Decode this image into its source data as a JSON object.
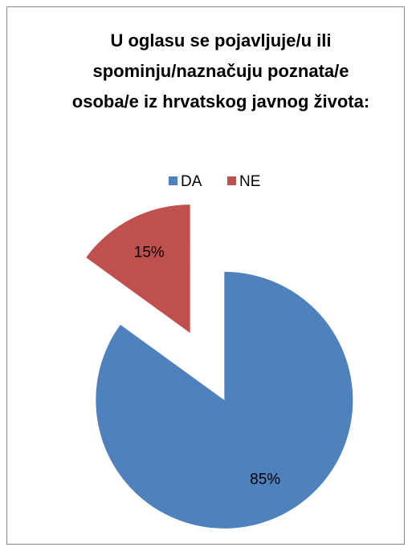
{
  "chart_data": {
    "type": "pie",
    "title": "U oglasu se pojavljuje/u ili spominju/naznačuju poznata/e osoba/e iz hrvatskog javnog života:",
    "categories": [
      "DA",
      "NE"
    ],
    "values": [
      85,
      15
    ],
    "value_labels": [
      "85%",
      "15%"
    ],
    "colors": [
      "#4f81bd",
      "#c0504d"
    ],
    "legend": "top"
  }
}
